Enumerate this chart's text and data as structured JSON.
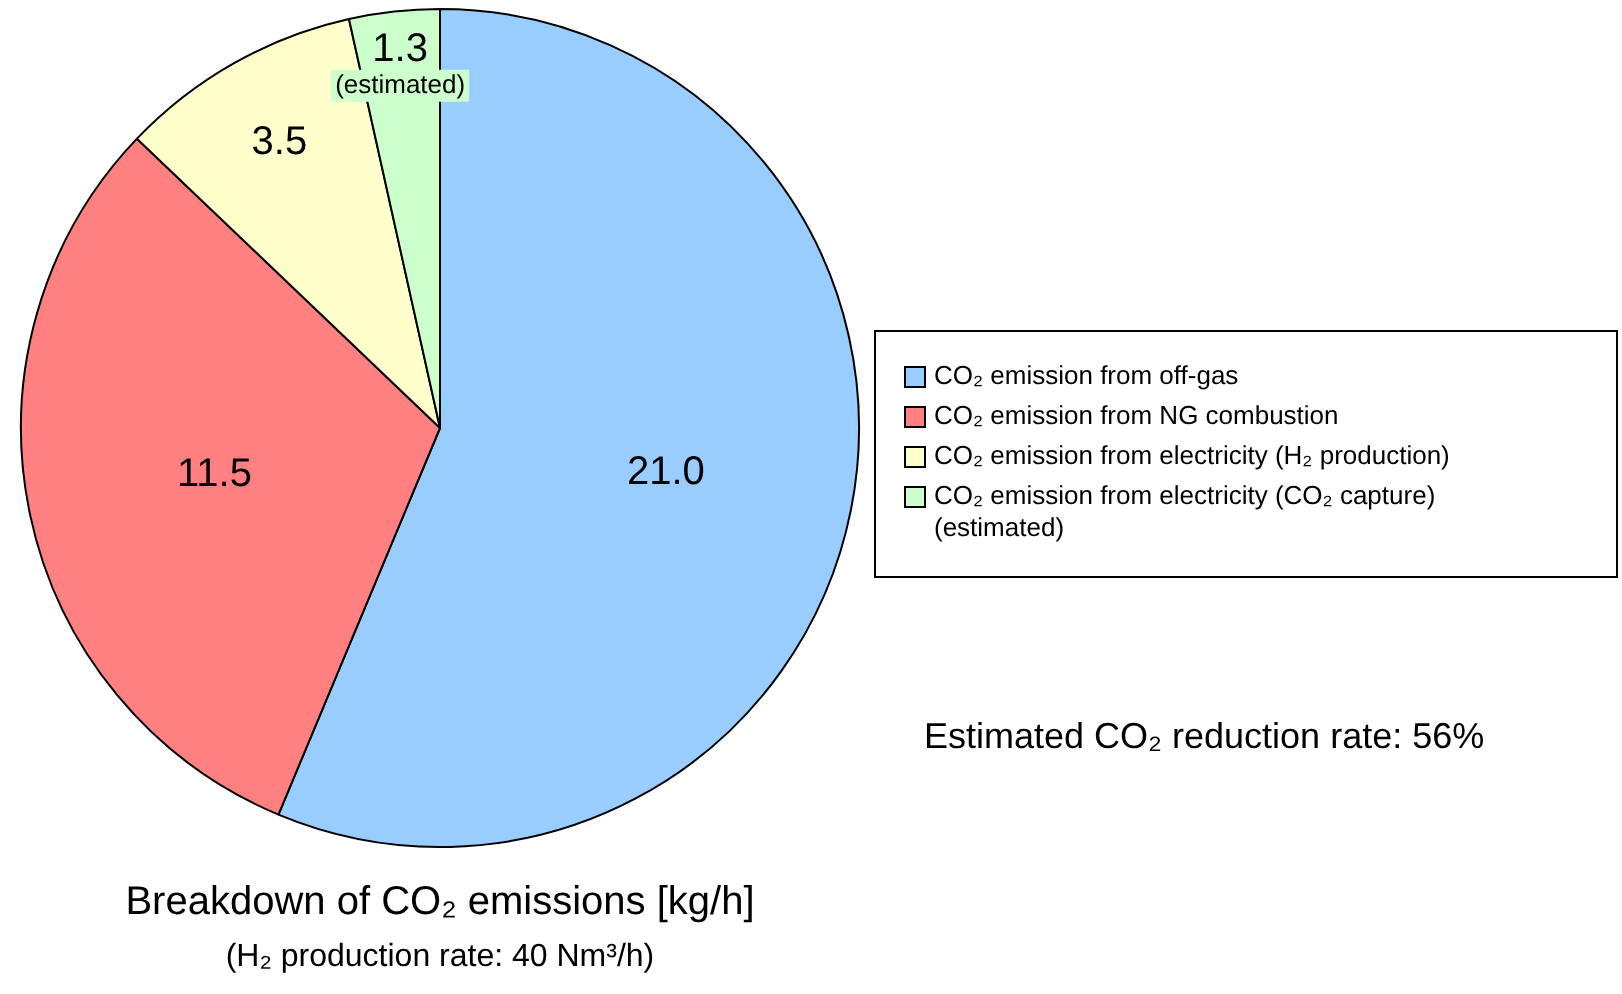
{
  "chart_data": {
    "type": "pie",
    "title": "Breakdown of CO₂ emissions [kg/h]",
    "subtitle": "(H₂ production rate: 40 Nm³/h)",
    "categories": [
      "CO₂ emission from off-gas",
      "CO₂ emission from NG combustion",
      "CO₂ emission from electricity (H₂ production)",
      "CO₂ emission from electricity (CO₂ capture)\n(estimated)"
    ],
    "values": [
      21.0,
      11.5,
      3.5,
      1.3
    ],
    "colors": [
      "#99ccff",
      "#ff8080",
      "#ffffcc",
      "#ccffcc"
    ],
    "value_labels": [
      "21.0",
      "11.5",
      "3.5",
      "1.3\n(estimated)"
    ],
    "legend": "right",
    "annotations": [
      "Estimated CO₂ reduction rate: 56%"
    ]
  }
}
